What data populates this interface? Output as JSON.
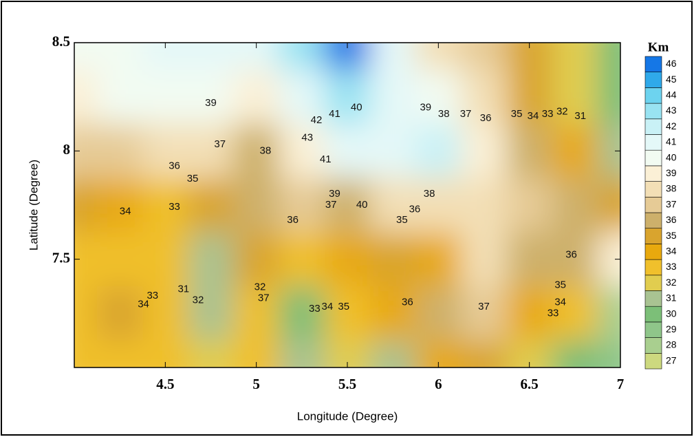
{
  "chart_data": {
    "type": "contour",
    "xlabel": "Longitude (Degree)",
    "ylabel": "Latitude (Degree)",
    "colorbar_title": "Km",
    "xlim": [
      4,
      7
    ],
    "ylim": [
      7,
      8.5
    ],
    "xticks": [
      4.5,
      5,
      5.5,
      6,
      6.5,
      7
    ],
    "yticks": [
      7.5,
      8,
      8.5
    ],
    "x": [
      4,
      4.25,
      4.5,
      4.75,
      5,
      5.25,
      5.5,
      5.75,
      6,
      6.25,
      6.5,
      6.75,
      7
    ],
    "y": [
      8.5,
      8.25,
      8,
      7.75,
      7.5,
      7.25,
      7
    ],
    "z": [
      [
        40,
        40,
        41,
        41,
        41,
        43,
        46,
        41,
        38,
        37,
        35,
        32,
        30
      ],
      [
        39,
        40,
        40,
        40,
        39,
        41,
        43,
        41,
        40,
        38,
        35,
        32,
        30
      ],
      [
        37,
        37,
        38,
        38,
        36,
        39,
        41,
        41,
        42,
        39,
        36,
        34,
        31
      ],
      [
        35,
        34,
        33,
        35,
        36,
        37,
        36,
        38,
        38,
        38,
        37,
        36,
        35
      ],
      [
        33,
        33,
        33,
        31,
        35,
        33,
        34,
        35,
        34,
        38,
        36,
        36,
        39
      ],
      [
        33,
        35,
        33,
        31,
        33,
        30,
        33,
        34,
        36,
        37,
        34,
        33,
        28
      ],
      [
        33,
        33,
        33,
        32,
        33,
        31,
        32,
        31,
        34,
        35,
        32,
        30,
        29
      ]
    ],
    "levels": [
      27,
      28,
      29,
      30,
      31,
      32,
      33,
      34,
      35,
      36,
      37,
      38,
      39,
      40,
      41,
      42,
      43,
      44,
      45,
      46
    ],
    "level_colors": [
      "#cdd97f",
      "#a9cf8f",
      "#8fc68a",
      "#7cbf78",
      "#a9c392",
      "#e1cd4f",
      "#f0c02c",
      "#e8a90e",
      "#d9a42e",
      "#cdb06b",
      "#e6cb96",
      "#f3dfb6",
      "#fbf0d6",
      "#f2fbf2",
      "#e4f8f8",
      "#c9f1f6",
      "#99e3f2",
      "#6dd3ef",
      "#2fa9ea",
      "#1577e6"
    ],
    "contour_labels": [
      {
        "value": 39,
        "x": 4.75,
        "y": 8.22
      },
      {
        "value": 37,
        "x": 4.8,
        "y": 8.03
      },
      {
        "value": 36,
        "x": 4.55,
        "y": 7.93
      },
      {
        "value": 35,
        "x": 4.65,
        "y": 7.87
      },
      {
        "value": 34,
        "x": 4.28,
        "y": 7.72
      },
      {
        "value": 33,
        "x": 4.55,
        "y": 7.74
      },
      {
        "value": 38,
        "x": 5.05,
        "y": 8.0
      },
      {
        "value": 43,
        "x": 5.28,
        "y": 8.06
      },
      {
        "value": 42,
        "x": 5.33,
        "y": 8.14
      },
      {
        "value": 41,
        "x": 5.43,
        "y": 8.17
      },
      {
        "value": 40,
        "x": 5.55,
        "y": 8.2
      },
      {
        "value": 39,
        "x": 5.93,
        "y": 8.2
      },
      {
        "value": 38,
        "x": 6.03,
        "y": 8.17
      },
      {
        "value": 37,
        "x": 6.15,
        "y": 8.17
      },
      {
        "value": 36,
        "x": 6.26,
        "y": 8.15
      },
      {
        "value": 35,
        "x": 6.43,
        "y": 8.17
      },
      {
        "value": 34,
        "x": 6.52,
        "y": 8.16
      },
      {
        "value": 33,
        "x": 6.6,
        "y": 8.17
      },
      {
        "value": 32,
        "x": 6.68,
        "y": 8.18
      },
      {
        "value": 31,
        "x": 6.78,
        "y": 8.16
      },
      {
        "value": 41,
        "x": 5.38,
        "y": 7.96
      },
      {
        "value": 39,
        "x": 5.43,
        "y": 7.8
      },
      {
        "value": 37,
        "x": 5.41,
        "y": 7.75
      },
      {
        "value": 40,
        "x": 5.58,
        "y": 7.75
      },
      {
        "value": 38,
        "x": 5.95,
        "y": 7.8
      },
      {
        "value": 36,
        "x": 5.87,
        "y": 7.73
      },
      {
        "value": 35,
        "x": 5.8,
        "y": 7.68
      },
      {
        "value": 36,
        "x": 5.2,
        "y": 7.68
      },
      {
        "value": 36,
        "x": 6.73,
        "y": 7.52
      },
      {
        "value": 35,
        "x": 6.67,
        "y": 7.38
      },
      {
        "value": 34,
        "x": 6.67,
        "y": 7.3
      },
      {
        "value": 33,
        "x": 6.63,
        "y": 7.25
      },
      {
        "value": 37,
        "x": 6.25,
        "y": 7.28
      },
      {
        "value": 36,
        "x": 5.83,
        "y": 7.3
      },
      {
        "value": 35,
        "x": 5.48,
        "y": 7.28
      },
      {
        "value": 34,
        "x": 5.39,
        "y": 7.28
      },
      {
        "value": 33,
        "x": 5.32,
        "y": 7.27
      },
      {
        "value": 32,
        "x": 5.02,
        "y": 7.37
      },
      {
        "value": 37,
        "x": 5.04,
        "y": 7.32
      },
      {
        "value": 31,
        "x": 4.6,
        "y": 7.36
      },
      {
        "value": 32,
        "x": 4.68,
        "y": 7.31
      },
      {
        "value": 33,
        "x": 4.43,
        "y": 7.33
      },
      {
        "value": 34,
        "x": 4.38,
        "y": 7.29
      }
    ]
  }
}
